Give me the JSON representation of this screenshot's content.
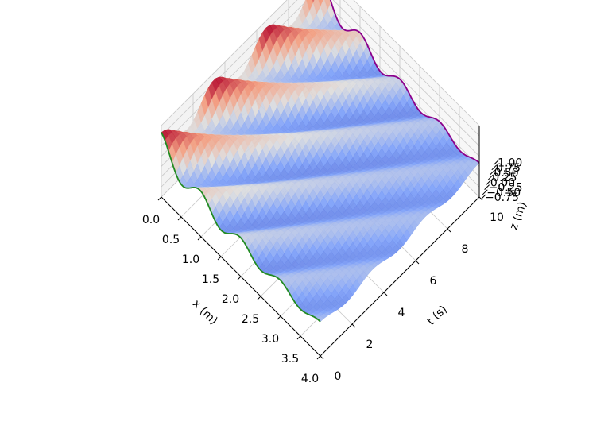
{
  "chart_data": {
    "type": "surface3d",
    "title": "",
    "colormap": "coolwarm",
    "xlabel": "x (m)",
    "ylabel": "t (s)",
    "zlabel": "z (m)",
    "xlim": [
      0,
      4
    ],
    "ylim": [
      0,
      10
    ],
    "zlim": [
      -0.75,
      1.0
    ],
    "x_ticks": [
      "0.0",
      "0.5",
      "1.0",
      "1.5",
      "2.0",
      "2.5",
      "3.0",
      "3.5",
      "4.0"
    ],
    "y_ticks": [
      "0",
      "2",
      "4",
      "6",
      "8",
      "10"
    ],
    "z_ticks": [
      "−0.75",
      "−0.50",
      "−0.25",
      "0.00",
      "0.25",
      "0.50",
      "0.75",
      "1.00"
    ],
    "surface": {
      "function": "damped traveling wave z(x,t)",
      "wavelength_m": 1.0,
      "period_s": 3.3
    },
    "curves": [
      {
        "name": "",
        "color": "#228b22",
        "at": "t = 0"
      },
      {
        "name": "",
        "color": "#8b008b",
        "at": "t = 10"
      }
    ],
    "grid": true
  }
}
